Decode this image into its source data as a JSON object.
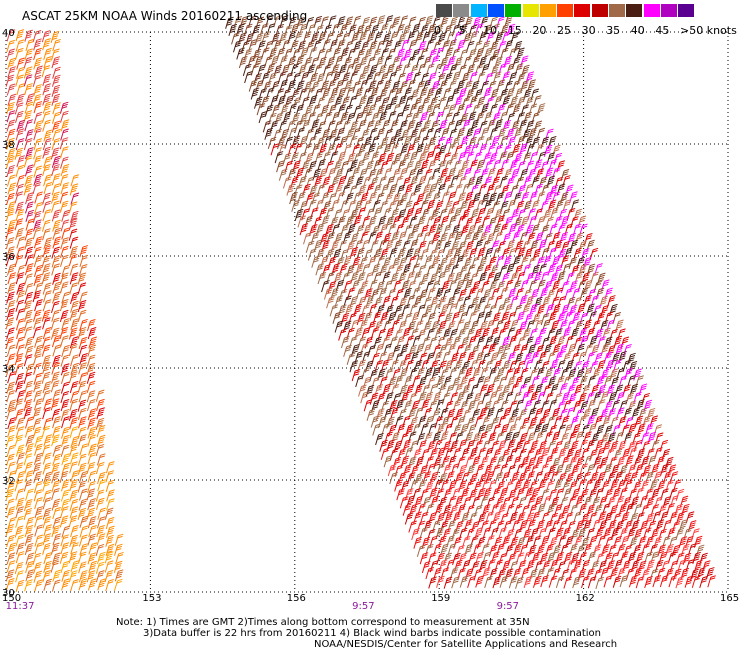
{
  "title": "ASCAT 25KM NOAA Winds 20160211 ascending",
  "legend": {
    "ticks": [
      "0",
      "5",
      "10",
      "15",
      "20",
      "25",
      "30",
      "35",
      "40",
      "45",
      ">50 knots"
    ],
    "colors": [
      "#4a4a4a",
      "#8a8a8a",
      "#00b4ff",
      "#0050ff",
      "#00b000",
      "#e6e600",
      "#ffa000",
      "#ff4000",
      "#dd0000",
      "#bf0000",
      "#a06a48",
      "#4a1e12",
      "#ff00ff",
      "#b000c0",
      "#5a0090"
    ]
  },
  "map": {
    "lon_range": [
      150,
      165
    ],
    "lat_range": [
      30,
      40
    ],
    "lon_labels": [
      "150",
      "153",
      "156",
      "159",
      "162",
      "165"
    ],
    "lat_labels": [
      "30",
      "32",
      "34",
      "36",
      "38",
      "40"
    ],
    "time_labels": [
      {
        "lon": 150.2,
        "text": "11:37"
      },
      {
        "lon": 157.4,
        "text": "9:57"
      },
      {
        "lon": 160.4,
        "text": "9:57"
      }
    ]
  },
  "notes": [
    "Note: 1) Times are GMT 2)Times along bottom correspond to measurement at 35N",
    "3)Data buffer is 22 hrs from 20160211 4) Black wind barbs indicate possible contamination",
    "NOAA/NESDIS/Center for Satellite Applications and Research"
  ]
}
